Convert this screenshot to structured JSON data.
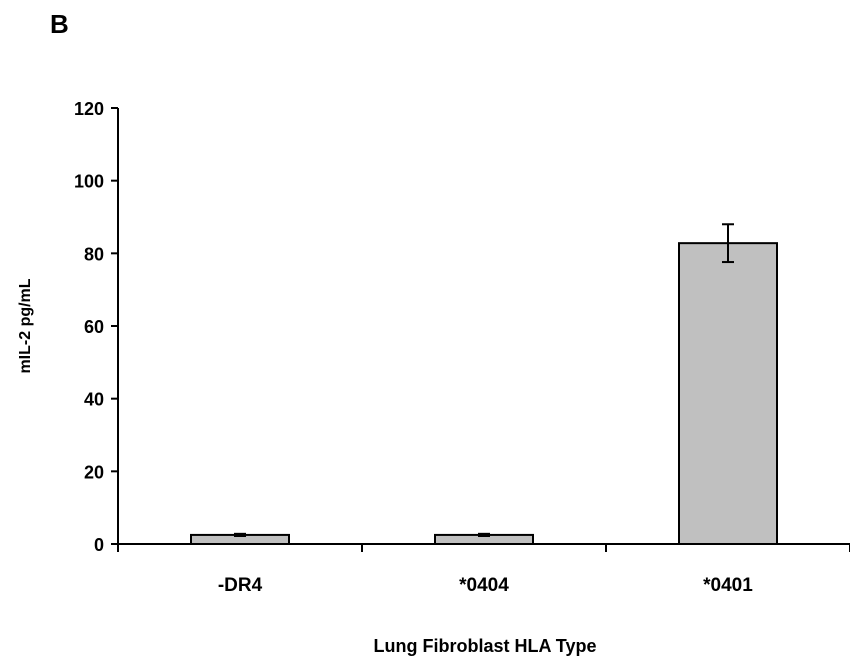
{
  "panel_label": "B",
  "chart_data": {
    "type": "bar",
    "title": "",
    "xlabel": "Lung Fibroblast HLA Type",
    "ylabel": "mIL-2 pg/mL",
    "categories": [
      "-DR4",
      "*0404",
      "*0401"
    ],
    "values": [
      2.5,
      2.5,
      82.8
    ],
    "errors": [
      0.3,
      0.3,
      5.2
    ],
    "ylim": [
      0,
      120
    ],
    "yticks": [
      0,
      20,
      40,
      60,
      80,
      100,
      120
    ],
    "ytick_labels": [
      "0",
      "20",
      "40",
      "60",
      "80",
      "100",
      "120"
    ],
    "grid": false,
    "legend": "none",
    "bar_color": "#c0c0c0",
    "edge_color": "#000000"
  }
}
